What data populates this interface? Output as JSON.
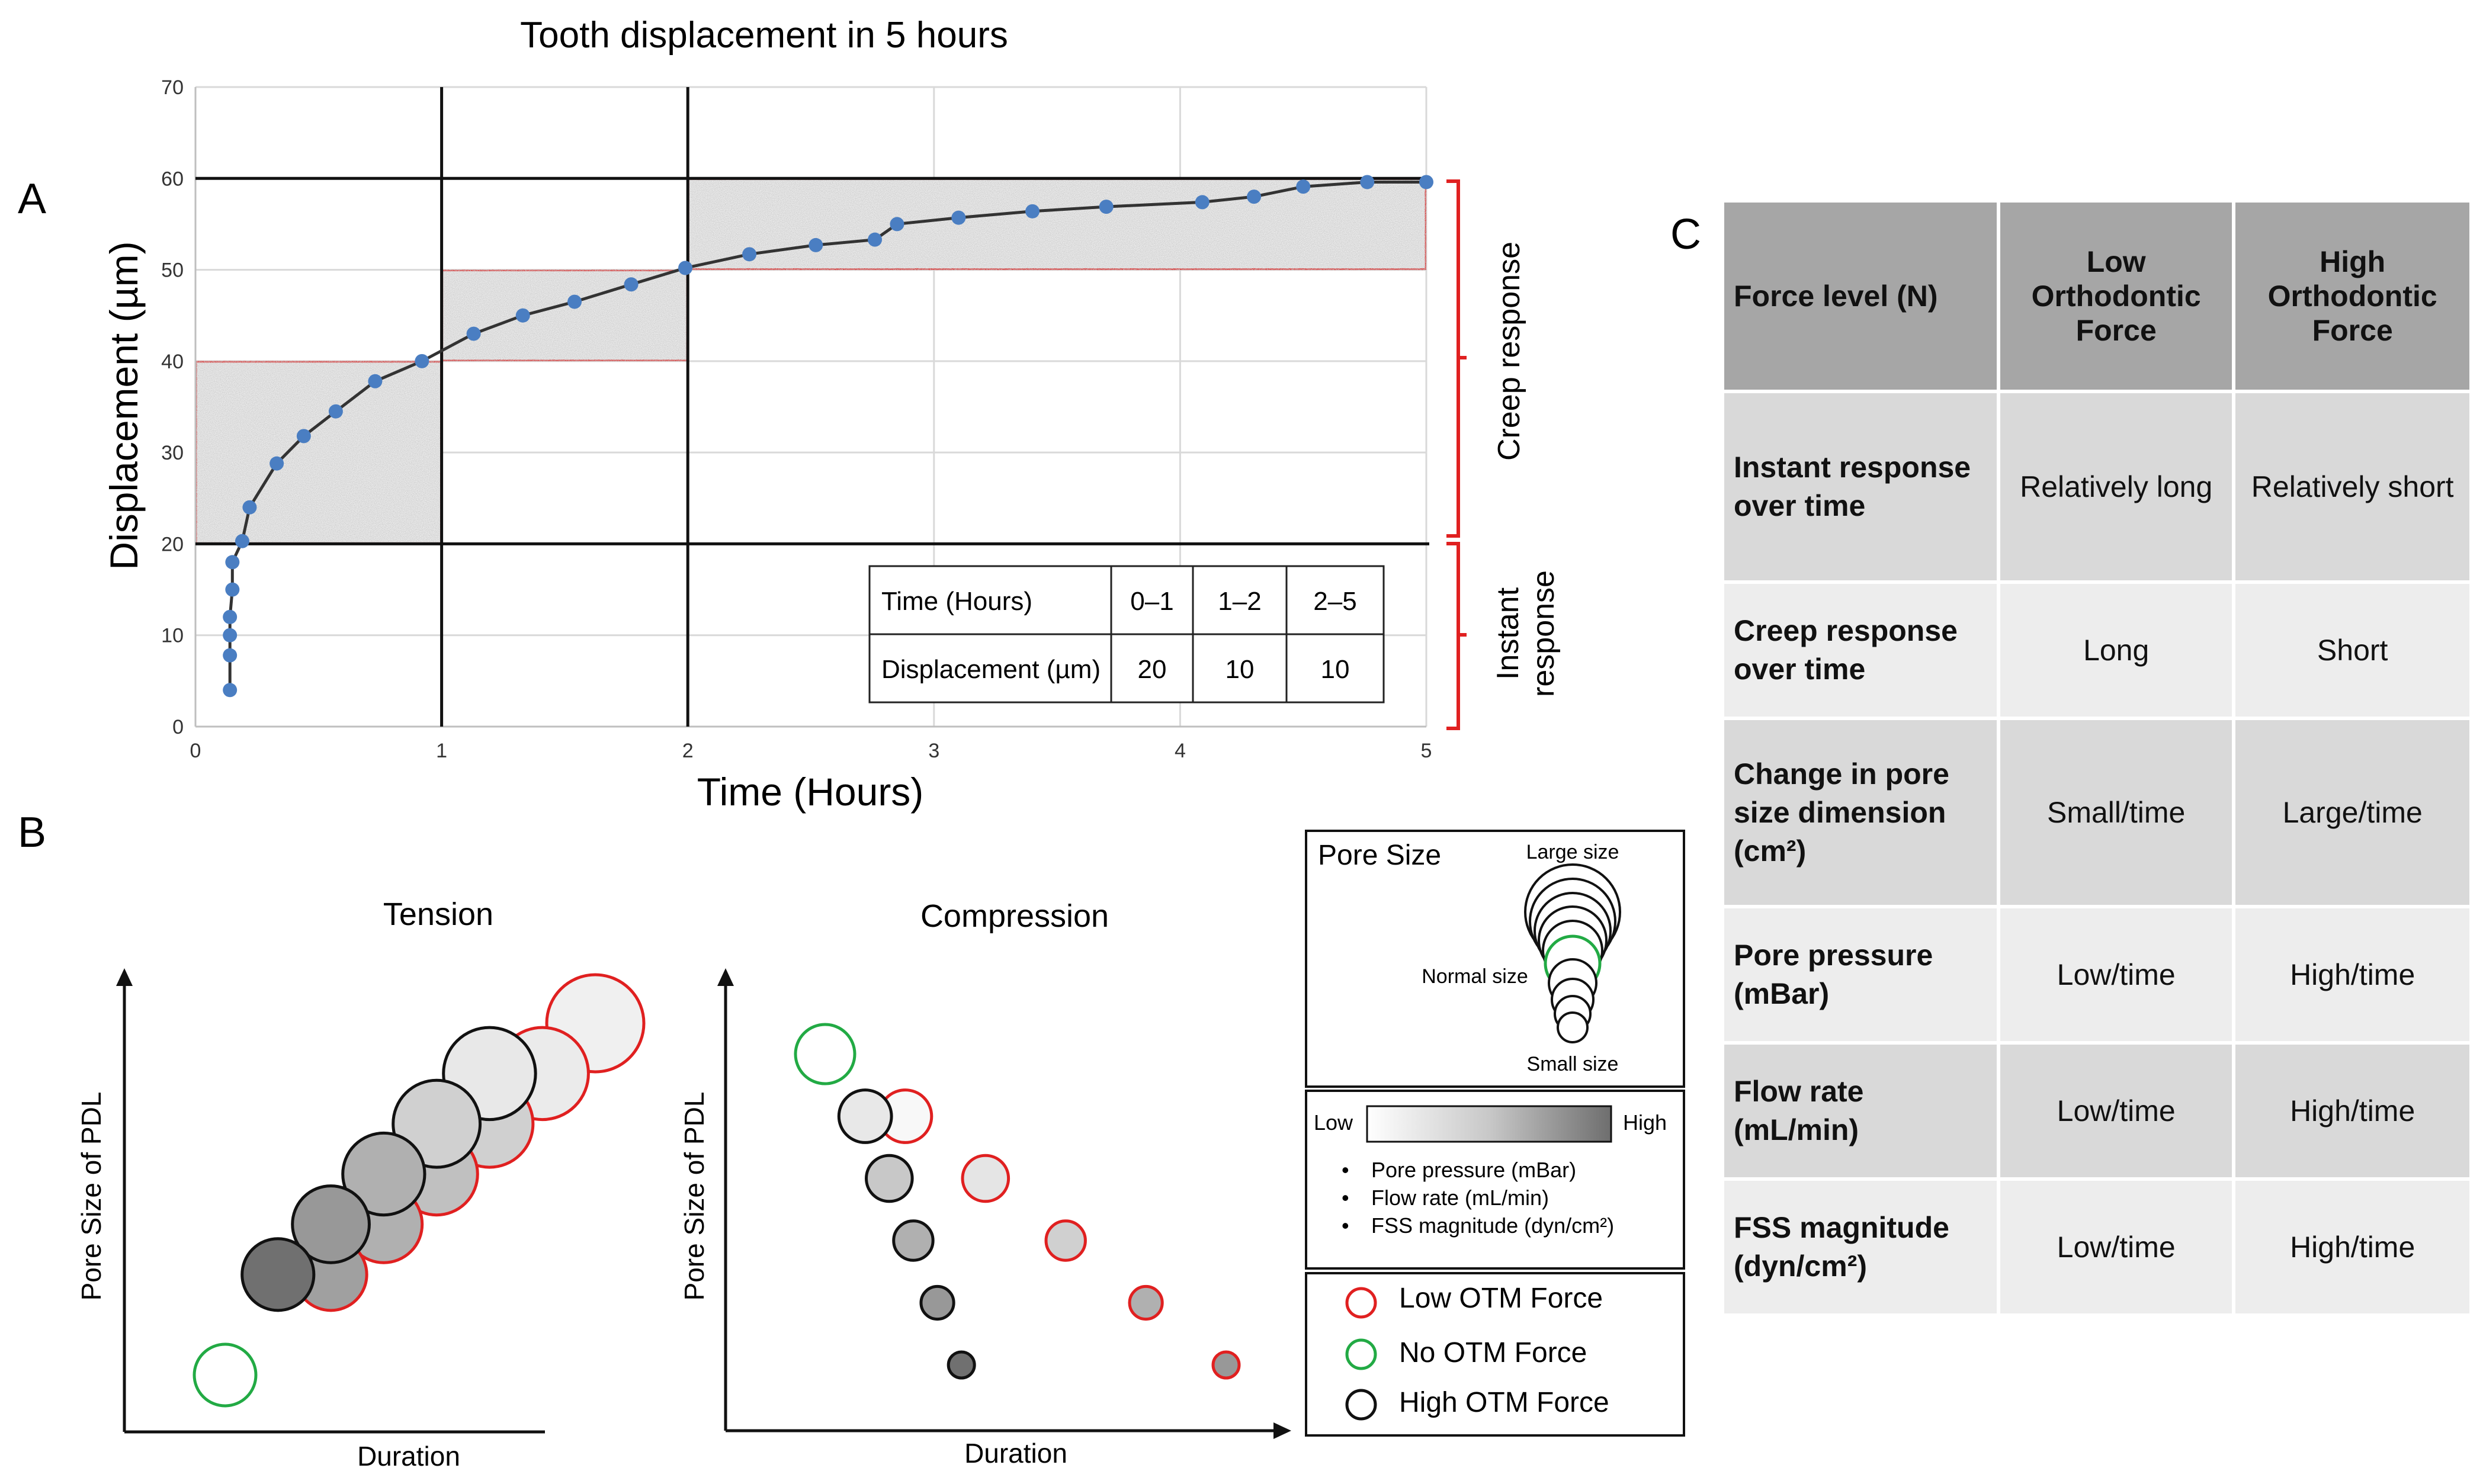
{
  "panel_labels": {
    "a": "A",
    "b": "B",
    "c": "C"
  },
  "chart_data": [
    {
      "type": "line",
      "title": "Tooth displacement in 5 hours",
      "xlabel": "Time (Hours)",
      "ylabel": "Displacement (µm)",
      "xlim": [
        0,
        5
      ],
      "ylim": [
        0,
        70
      ],
      "xticks": [
        "0",
        "1",
        "2",
        "3",
        "4",
        "5"
      ],
      "yticks": [
        "0",
        "10",
        "20",
        "30",
        "40",
        "50",
        "60",
        "70"
      ],
      "grid": true,
      "series": [
        {
          "name": "Displacement",
          "color": "#4a7ec2",
          "line_color": "#333333",
          "x": [
            0.14,
            0.14,
            0.14,
            0.14,
            0.15,
            0.15,
            0.19,
            0.22,
            0.33,
            0.44,
            0.57,
            0.73,
            0.92,
            1.13,
            1.33,
            1.54,
            1.77,
            1.99,
            2.25,
            2.52,
            2.76,
            2.85,
            3.1,
            3.4,
            3.7,
            4.09,
            4.3,
            4.5,
            4.76,
            5.0
          ],
          "y": [
            4,
            7.8,
            10,
            12,
            15,
            18,
            20.3,
            24,
            28.8,
            31.8,
            34.5,
            37.8,
            40,
            43,
            45,
            46.5,
            48.4,
            50.2,
            51.7,
            52.7,
            53.3,
            55,
            55.7,
            56.4,
            56.9,
            57.4,
            58,
            59.1,
            59.6,
            59.6
          ]
        }
      ],
      "regions": [
        {
          "x": [
            0,
            1
          ],
          "y": [
            20,
            40
          ]
        },
        {
          "x": [
            1,
            2
          ],
          "y": [
            40,
            50
          ]
        },
        {
          "x": [
            2,
            5
          ],
          "y": [
            50,
            60
          ]
        }
      ],
      "reference_lines": {
        "horizontal": [
          20,
          60
        ],
        "vertical": [
          1,
          2
        ]
      },
      "bracket_labels": {
        "upper": "Creep response",
        "lower": [
          "Instant",
          "response"
        ]
      },
      "inset_table": {
        "rows": [
          [
            "Time (Hours)",
            "0–1",
            "1–2",
            "2–5"
          ],
          [
            "Displacement (µm)",
            "20",
            "10",
            "10"
          ]
        ]
      }
    },
    {
      "type": "scatter",
      "title": "Tension",
      "xlabel": "Duration",
      "ylabel": "Pore Size of PDL",
      "series": [
        {
          "name": "Low OTM Force",
          "edge_color": "#e02020",
          "x": [
            8,
            7,
            6,
            5,
            4,
            3
          ],
          "y": [
            8,
            7,
            6,
            5,
            4,
            3
          ],
          "shade_level": [
            0.05,
            0.08,
            0.25,
            0.35,
            0.45,
            0.55
          ]
        },
        {
          "name": "No OTM Force",
          "edge_color": "#22aa44",
          "x": [
            1
          ],
          "y": [
            1
          ]
        },
        {
          "name": "High OTM Force",
          "edge_color": "#111111",
          "x": [
            6,
            5,
            4,
            3,
            2
          ],
          "y": [
            7,
            6,
            5,
            4,
            3
          ],
          "shade_level": [
            0.1,
            0.25,
            0.45,
            0.6,
            0.85
          ]
        }
      ]
    },
    {
      "type": "scatter",
      "title": "Compression",
      "xlabel": "Duration",
      "ylabel": "Pore Size of PDL",
      "series": [
        {
          "name": "Low OTM Force",
          "edge_color": "#e02020",
          "x": [
            2,
            3,
            4,
            5,
            6
          ],
          "y": [
            5,
            4,
            3,
            2,
            1
          ],
          "shade_level": [
            0.0,
            0.12,
            0.25,
            0.45,
            0.6
          ]
        },
        {
          "name": "No OTM Force",
          "edge_color": "#22aa44",
          "x": [
            1
          ],
          "y": [
            6
          ]
        },
        {
          "name": "High OTM Force",
          "edge_color": "#111111",
          "x": [
            1.5,
            1.8,
            2.1,
            2.4,
            2.7
          ],
          "y": [
            5,
            4,
            3,
            2,
            1
          ],
          "shade_level": [
            0.1,
            0.3,
            0.45,
            0.6,
            0.85
          ]
        }
      ]
    }
  ],
  "legend_b": {
    "pore_size": {
      "title": "Pore Size",
      "large": "Large size",
      "normal": "Normal size",
      "small": "Small size"
    },
    "gradient": {
      "low": "Low",
      "high": "High",
      "items": [
        "Pore pressure (mBar)",
        "Flow rate (mL/min)",
        "FSS magnitude (dyn/cm²)"
      ]
    },
    "forces": [
      {
        "label": "Low OTM Force",
        "color": "#e02020"
      },
      {
        "label": "No OTM Force",
        "color": "#22aa44"
      },
      {
        "label": "High OTM Force",
        "color": "#111111"
      }
    ]
  },
  "table_c": {
    "headers": [
      "Force level (N)",
      "Low Orthodontic Force",
      "High Orthodontic Force"
    ],
    "rows": [
      {
        "label": "Instant response over time",
        "low": "Relatively long",
        "high": "Relatively short"
      },
      {
        "label": "Creep response over time",
        "low": "Long",
        "high": "Short"
      },
      {
        "label": "Change in pore size dimension (cm²)",
        "low": "Small/time",
        "high": "Large/time"
      },
      {
        "label": "Pore pressure (mBar)",
        "low": "Low/time",
        "high": "High/time"
      },
      {
        "label": "Flow rate (mL/min)",
        "low": "Low/time",
        "high": "High/time"
      },
      {
        "label": "FSS magnitude (dyn/cm²)",
        "low": "Low/time",
        "high": "High/time"
      }
    ]
  }
}
